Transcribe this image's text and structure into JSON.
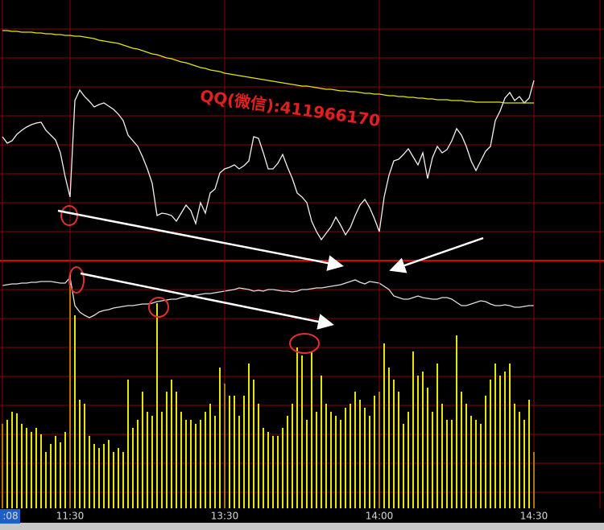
{
  "chart_data": [
    {
      "type": "line",
      "annotation": "QQ(微信):411966170",
      "xlim": [
        0,
        110
      ],
      "ylim": [
        0,
        324
      ],
      "series": [
        {
          "color": "#f0f0f0",
          "values": [
            154,
            146,
            149,
            157,
            162,
            166,
            169,
            171,
            172,
            162,
            156,
            150,
            134,
            104,
            79,
            199,
            212,
            204,
            198,
            191,
            194,
            196,
            192,
            188,
            182,
            174,
            156,
            149,
            142,
            129,
            114,
            96,
            56,
            59,
            58,
            56,
            49,
            59,
            69,
            62,
            46,
            72,
            59,
            84,
            89,
            109,
            114,
            116,
            119,
            114,
            118,
            124,
            154,
            152,
            134,
            114,
            114,
            121,
            132,
            116,
            102,
            84,
            79,
            72,
            49,
            36,
            26,
            34,
            42,
            54,
            44,
            32,
            41,
            56,
            69,
            76,
            66,
            52,
            36,
            79,
            106,
            124,
            126,
            132,
            139,
            129,
            119,
            134,
            102,
            128,
            142,
            134,
            138,
            149,
            164,
            156,
            142,
            124,
            112,
            124,
            136,
            142,
            174,
            186,
            202,
            209,
            199,
            204,
            196,
            202,
            224
          ]
        },
        {
          "color": "#e6e600",
          "values": [
            286,
            286,
            285,
            285,
            284,
            284,
            284,
            283,
            283,
            282,
            282,
            281,
            281,
            280,
            280,
            279,
            279,
            278,
            277,
            276,
            274,
            273,
            272,
            271,
            270,
            268,
            266,
            264,
            263,
            261,
            259,
            257,
            256,
            254,
            252,
            251,
            249,
            247,
            246,
            244,
            242,
            240,
            239,
            237,
            236,
            235,
            233,
            232,
            231,
            230,
            229,
            228,
            227,
            226,
            225,
            224,
            223,
            222,
            221,
            220,
            219,
            218,
            217,
            217,
            216,
            215,
            214,
            213,
            213,
            212,
            211,
            211,
            210,
            210,
            209,
            208,
            208,
            207,
            207,
            206,
            205,
            205,
            204,
            204,
            203,
            203,
            202,
            202,
            201,
            201,
            200,
            200,
            200,
            199,
            199,
            199,
            198,
            198,
            197,
            197,
            197,
            197,
            197,
            197,
            196,
            196,
            196,
            196,
            196,
            196,
            196
          ]
        }
      ]
    },
    {
      "type": "bar",
      "xlim": [
        0,
        110
      ],
      "xticks": [
        {
          "value": 0,
          "label": ":08"
        },
        {
          "value": 14,
          "label": "11:30"
        },
        {
          "value": 46,
          "label": "13:30"
        },
        {
          "value": 78,
          "label": "14:00"
        },
        {
          "value": 110,
          "label": "14:30"
        }
      ],
      "ylim": [
        0,
        300
      ],
      "y2lim": [
        0,
        100
      ],
      "series": [
        {
          "type": "bar",
          "color": "#e6e600",
          "values": [
            105,
            110,
            120,
            118,
            105,
            100,
            95,
            100,
            92,
            70,
            80,
            90,
            82,
            95,
            292,
            240,
            135,
            130,
            90,
            80,
            75,
            80,
            85,
            70,
            75,
            70,
            160,
            100,
            110,
            145,
            120,
            115,
            255,
            120,
            145,
            160,
            145,
            120,
            110,
            110,
            105,
            110,
            120,
            130,
            115,
            175,
            155,
            140,
            140,
            115,
            140,
            180,
            160,
            130,
            100,
            95,
            90,
            90,
            100,
            115,
            130,
            200,
            190,
            110,
            195,
            120,
            165,
            130,
            120,
            115,
            110,
            125,
            130,
            145,
            135,
            125,
            115,
            140,
            145,
            205,
            175,
            160,
            145,
            105,
            120,
            195,
            165,
            170,
            150,
            120,
            180,
            130,
            110,
            110,
            215,
            145,
            130,
            115,
            110,
            105,
            140,
            160,
            180,
            165,
            170,
            180,
            130,
            120,
            110,
            135,
            70
          ]
        },
        {
          "type": "line",
          "axis": "y2",
          "color": "#e0e0e0",
          "values": [
            45,
            46,
            47,
            47,
            48,
            48,
            49,
            49,
            50,
            50,
            50,
            49,
            48,
            48,
            55,
            20,
            12,
            8,
            5,
            8,
            12,
            14,
            15,
            17,
            18,
            19,
            20,
            20,
            21,
            22,
            22,
            23,
            25,
            26,
            27,
            28,
            28,
            30,
            31,
            32,
            33,
            34,
            35,
            35,
            36,
            37,
            38,
            39,
            40,
            42,
            41,
            40,
            38,
            39,
            38,
            40,
            40,
            39,
            38,
            38,
            37,
            38,
            40,
            40,
            41,
            42,
            42,
            43,
            44,
            45,
            46,
            48,
            50,
            52,
            49,
            47,
            50,
            49,
            48,
            44,
            40,
            32,
            30,
            28,
            28,
            30,
            32,
            30,
            29,
            28,
            28,
            30,
            30,
            28,
            24,
            20,
            20,
            22,
            24,
            26,
            25,
            22,
            20,
            20,
            21,
            20,
            18,
            18,
            19,
            20,
            20
          ]
        }
      ]
    }
  ]
}
